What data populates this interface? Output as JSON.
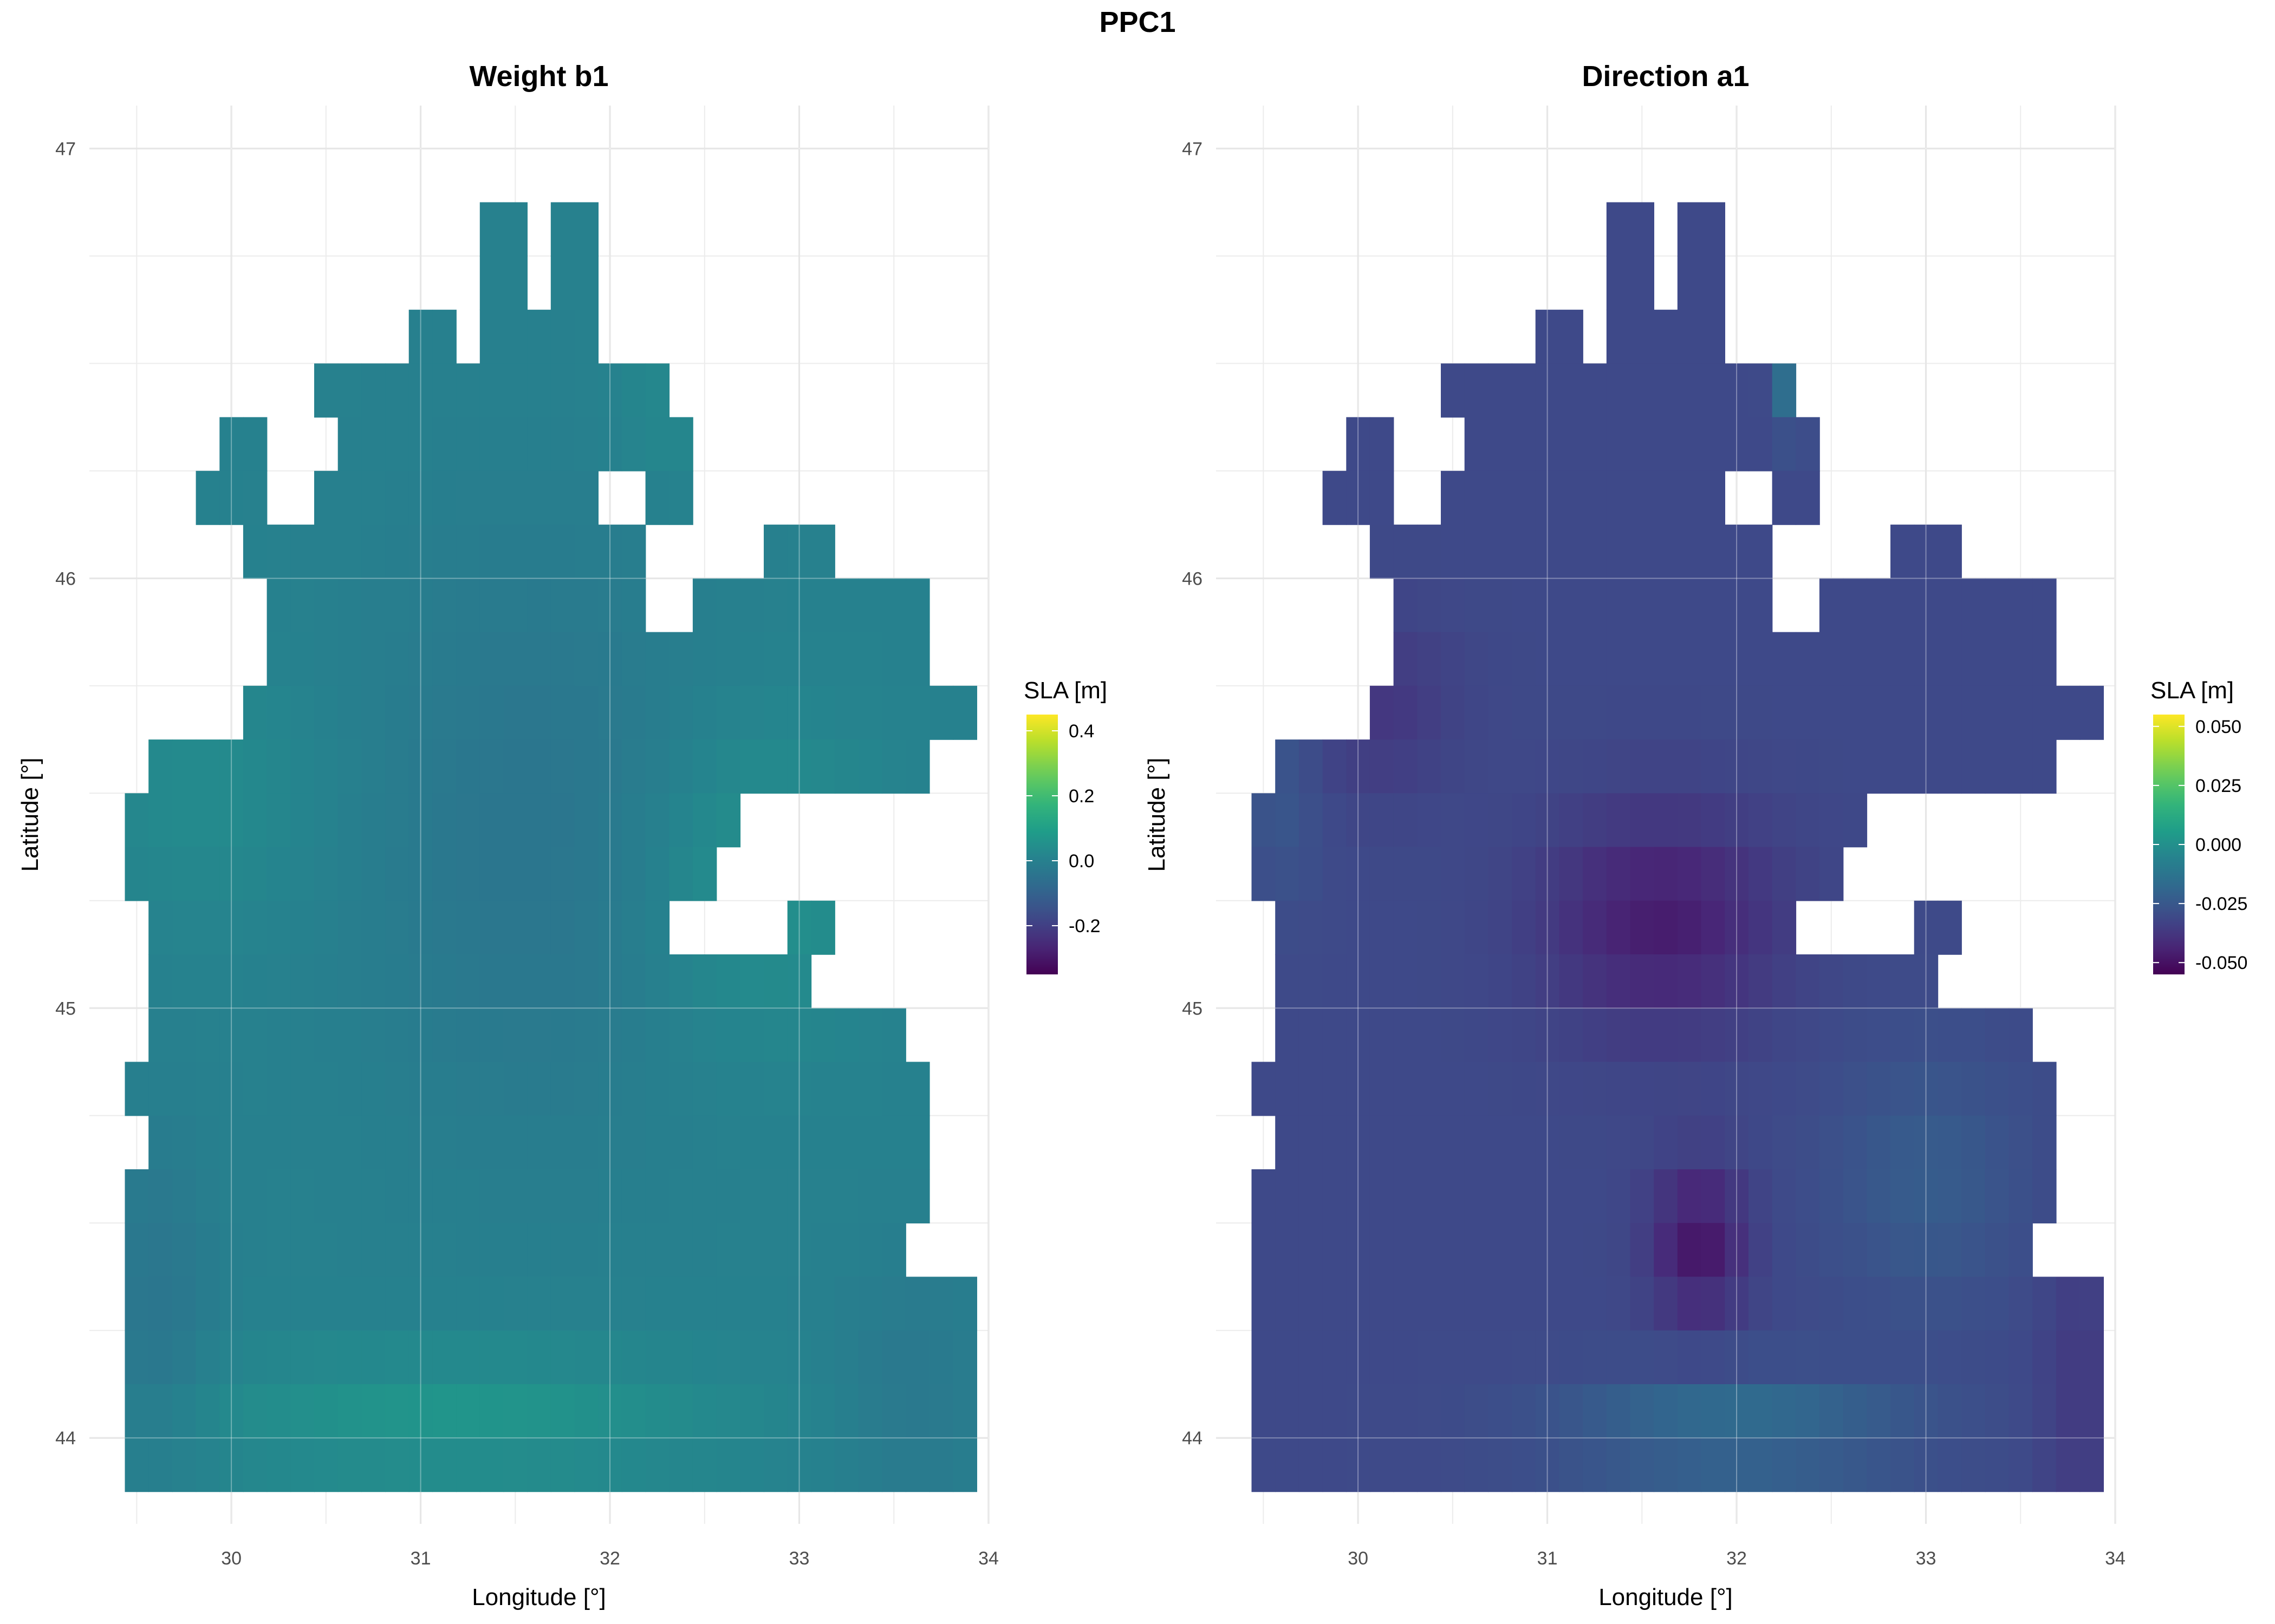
{
  "figure_title": "PPC1",
  "chart_data": [
    {
      "type": "heatmap",
      "title": "Weight b1",
      "xlabel": "Longitude [°]",
      "ylabel": "Latitude [°]",
      "x_ticks": [
        30,
        31,
        32,
        33,
        34
      ],
      "y_ticks": [
        44,
        45,
        46,
        47
      ],
      "xlim": [
        29.25,
        34.0
      ],
      "ylim": [
        43.8,
        47.1
      ],
      "grid": true,
      "legend": {
        "title": "SLA [m]",
        "position": "right",
        "colormap": "viridis",
        "range": [
          -0.35,
          0.45
        ],
        "ticks": [
          0.4,
          0.2,
          0.0,
          -0.2
        ],
        "tick_labels": [
          "0.4",
          "0.2",
          "0.0",
          "-0.2"
        ]
      },
      "value_summary": {
        "dominant": -0.02,
        "min_approx": -0.1,
        "max_approx": 0.08
      }
    },
    {
      "type": "heatmap",
      "title": "Direction a1",
      "xlabel": "Longitude [°]",
      "ylabel": "Latitude [°]",
      "x_ticks": [
        30,
        31,
        32,
        33,
        34
      ],
      "y_ticks": [
        44,
        45,
        46,
        47
      ],
      "xlim": [
        29.25,
        34.0
      ],
      "ylim": [
        43.8,
        47.1
      ],
      "grid": true,
      "legend": {
        "title": "SLA [m]",
        "position": "right",
        "colormap": "viridis",
        "range": [
          -0.055,
          0.055
        ],
        "ticks": [
          0.05,
          0.025,
          0.0,
          -0.025,
          -0.05
        ],
        "tick_labels": [
          "0.050",
          "0.025",
          "0.000",
          "-0.025",
          "-0.050"
        ]
      },
      "value_summary": {
        "dominant": -0.03,
        "min_approx": -0.055,
        "max_approx": 0.01
      }
    }
  ]
}
